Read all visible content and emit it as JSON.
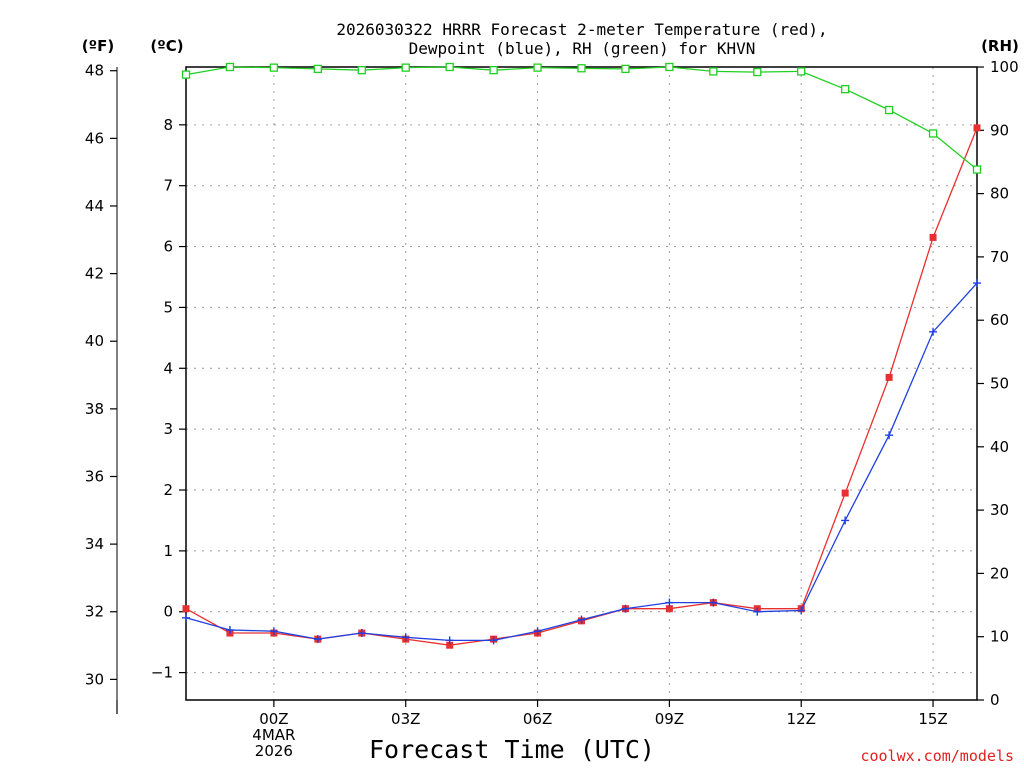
{
  "chart_data": {
    "type": "line",
    "title": [
      "2026030322 HRRR Forecast 2-meter Temperature (red),",
      "Dewpoint (blue), RH (green) for KHVN"
    ],
    "xlabel": "Forecast Time (UTC)",
    "credit": "coolwx.com/models",
    "units": {
      "fahrenheit": "(ºF)",
      "celsius": "(ºC)",
      "rh": "(RH)"
    },
    "x": [
      -1,
      0,
      1,
      2,
      3,
      4,
      5,
      6,
      7,
      8,
      9,
      10,
      11,
      12,
      13,
      14,
      15,
      16,
      17
    ],
    "xlim": [
      -1,
      17
    ],
    "x_ticks": [
      {
        "x": 1,
        "lines": [
          "00Z",
          "4MAR",
          "2026"
        ]
      },
      {
        "x": 4,
        "lines": [
          "03Z"
        ]
      },
      {
        "x": 7,
        "lines": [
          "06Z"
        ]
      },
      {
        "x": 10,
        "lines": [
          "09Z"
        ]
      },
      {
        "x": 13,
        "lines": [
          "12Z"
        ]
      },
      {
        "x": 16,
        "lines": [
          "15Z"
        ]
      }
    ],
    "celsius_axis": {
      "ylim": [
        -1.45,
        8.95
      ],
      "ticks": [
        -1,
        0,
        1,
        2,
        3,
        4,
        5,
        6,
        7,
        8
      ]
    },
    "fahrenheit_axis": {
      "ylim": [
        29.39,
        48.11
      ],
      "ticks": [
        30,
        32,
        34,
        36,
        38,
        40,
        42,
        44,
        46,
        48
      ]
    },
    "rh_axis": {
      "ylim": [
        0,
        100
      ],
      "ticks": [
        0,
        10,
        20,
        30,
        40,
        50,
        60,
        70,
        80,
        90,
        100
      ]
    },
    "series": [
      {
        "name": "Temperature",
        "axis": "celsius",
        "color": "#e83030",
        "marker": "filled-square",
        "values": [
          0.05,
          -0.35,
          -0.35,
          -0.45,
          -0.35,
          -0.45,
          -0.55,
          -0.45,
          -0.35,
          -0.15,
          0.05,
          0.05,
          0.15,
          0.05,
          0.05,
          1.95,
          3.85,
          6.15,
          7.95
        ]
      },
      {
        "name": "Dewpoint",
        "axis": "celsius",
        "color": "#2040e0",
        "marker": "plus",
        "values": [
          -0.1,
          -0.3,
          -0.32,
          -0.45,
          -0.35,
          -0.42,
          -0.47,
          -0.47,
          -0.32,
          -0.13,
          0.05,
          0.15,
          0.15,
          0.0,
          0.02,
          1.5,
          2.9,
          4.6,
          5.4
        ]
      },
      {
        "name": "RH",
        "axis": "rh",
        "color": "#20d020",
        "marker": "open-square",
        "values": [
          98.8,
          100.0,
          99.9,
          99.7,
          99.5,
          99.9,
          100.0,
          99.5,
          99.9,
          99.8,
          99.7,
          100.0,
          99.3,
          99.2,
          99.3,
          96.5,
          93.2,
          89.5,
          83.8
        ]
      }
    ]
  }
}
